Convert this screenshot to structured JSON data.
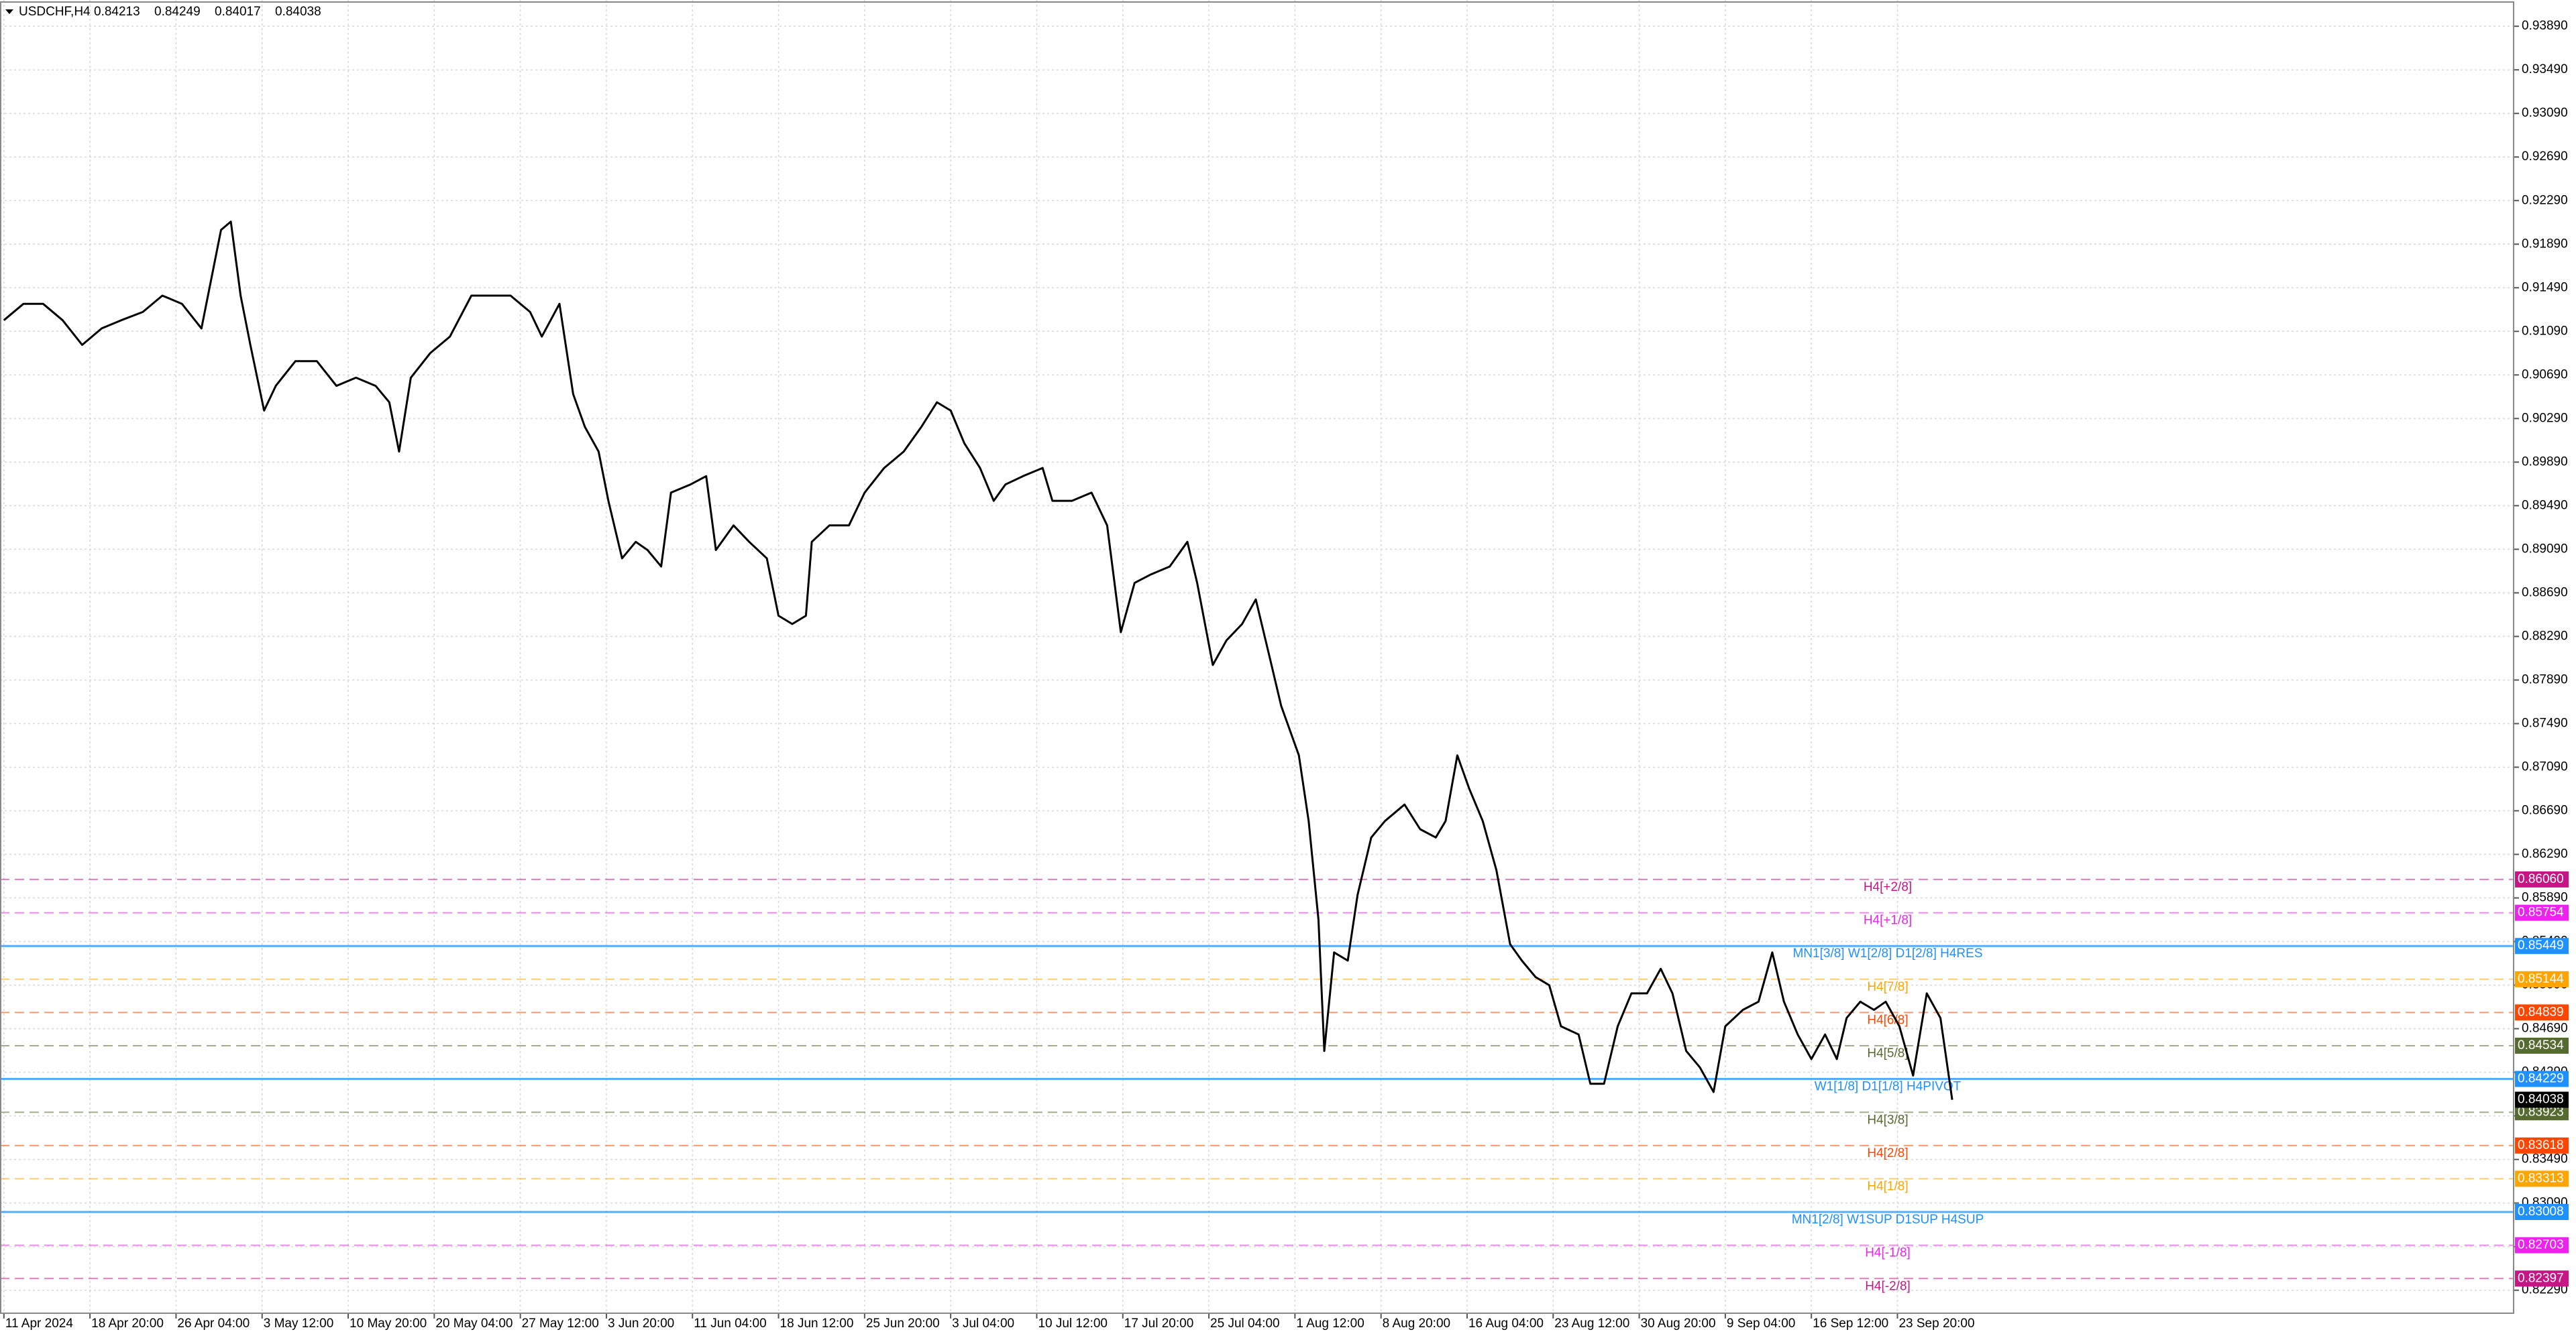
{
  "chart_data": {
    "type": "line",
    "title": "USDCHF,H4",
    "ohlc": [
      0.84213,
      0.84249,
      0.84017,
      0.84038
    ],
    "xlim": [
      -2,
      1283
    ],
    "ylim": [
      0.82079,
      0.94131
    ],
    "grid": true,
    "xticks": [
      {
        "value": 0,
        "label": "11 Apr 2024"
      },
      {
        "value": 44,
        "label": "18 Apr 20:00"
      },
      {
        "value": 88,
        "label": "26 Apr 04:00"
      },
      {
        "value": 132,
        "label": "3 May 12:00"
      },
      {
        "value": 176,
        "label": "10 May 20:00"
      },
      {
        "value": 220,
        "label": "20 May 04:00"
      },
      {
        "value": 264,
        "label": "27 May 12:00"
      },
      {
        "value": 308,
        "label": "3 Jun 20:00"
      },
      {
        "value": 352,
        "label": "11 Jun 04:00"
      },
      {
        "value": 396,
        "label": "18 Jun 12:00"
      },
      {
        "value": 440,
        "label": "25 Jun 20:00"
      },
      {
        "value": 484,
        "label": "3 Jul 04:00"
      },
      {
        "value": 528,
        "label": "10 Jul 12:00"
      },
      {
        "value": 572,
        "label": "17 Jul 20:00"
      },
      {
        "value": 616,
        "label": "25 Jul 04:00"
      },
      {
        "value": 660,
        "label": "1 Aug 12:00"
      },
      {
        "value": 704,
        "label": "8 Aug 20:00"
      },
      {
        "value": 748,
        "label": "16 Aug 04:00"
      },
      {
        "value": 792,
        "label": "23 Aug 12:00"
      },
      {
        "value": 836,
        "label": "30 Aug 20:00"
      },
      {
        "value": 880,
        "label": "9 Sep 04:00"
      },
      {
        "value": 924,
        "label": "16 Sep 12:00"
      },
      {
        "value": 968,
        "label": "23 Sep 20:00"
      }
    ],
    "yticks": [
      {
        "value": 0.9389,
        "label": "0.93890"
      },
      {
        "value": 0.9349,
        "label": "0.93490"
      },
      {
        "value": 0.9309,
        "label": "0.93090"
      },
      {
        "value": 0.9269,
        "label": "0.92690"
      },
      {
        "value": 0.9229,
        "label": "0.92290"
      },
      {
        "value": 0.9189,
        "label": "0.91890"
      },
      {
        "value": 0.9149,
        "label": "0.91490"
      },
      {
        "value": 0.9109,
        "label": "0.91090"
      },
      {
        "value": 0.9069,
        "label": "0.90690"
      },
      {
        "value": 0.9029,
        "label": "0.90290"
      },
      {
        "value": 0.8989,
        "label": "0.89890"
      },
      {
        "value": 0.8949,
        "label": "0.89490"
      },
      {
        "value": 0.8909,
        "label": "0.89090"
      },
      {
        "value": 0.8869,
        "label": "0.88690"
      },
      {
        "value": 0.8829,
        "label": "0.88290"
      },
      {
        "value": 0.8789,
        "label": "0.87890"
      },
      {
        "value": 0.8749,
        "label": "0.87490"
      },
      {
        "value": 0.8709,
        "label": "0.87090"
      },
      {
        "value": 0.8669,
        "label": "0.86690"
      },
      {
        "value": 0.8629,
        "label": "0.86290"
      },
      {
        "value": 0.8589,
        "label": "0.85890"
      },
      {
        "value": 0.8549,
        "label": "0.85490"
      },
      {
        "value": 0.8509,
        "label": "0.85090"
      },
      {
        "value": 0.8469,
        "label": "0.84690"
      },
      {
        "value": 0.8429,
        "label": "0.84290"
      },
      {
        "value": 0.8389,
        "label": "0.83890"
      },
      {
        "value": 0.8349,
        "label": "0.83490"
      },
      {
        "value": 0.8309,
        "label": "0.83090"
      },
      {
        "value": 0.8269,
        "label": "0.82690"
      },
      {
        "value": 0.8229,
        "label": "0.82290"
      }
    ],
    "series": [
      {
        "color": "#000000",
        "x": [
          0,
          10,
          20,
          30,
          40,
          50,
          60,
          71,
          81,
          91,
          101,
          111,
          116,
          121,
          126,
          133,
          139,
          149,
          160,
          170,
          180,
          190,
          197,
          202,
          208,
          218,
          228,
          239,
          249,
          259,
          269,
          275,
          284,
          291,
          297,
          304,
          309,
          316,
          323,
          329,
          336,
          341,
          351,
          359,
          364,
          373,
          381,
          390,
          396,
          403,
          410,
          413,
          422,
          432,
          440,
          450,
          460,
          469,
          477,
          484,
          491,
          499,
          506,
          512,
          521,
          531,
          536,
          546,
          556,
          564,
          571,
          578,
          586,
          596,
          605,
          610,
          618,
          625,
          633,
          640,
          647,
          653,
          662,
          667,
          672,
          675,
          680,
          687,
          692,
          699,
          706,
          716,
          724,
          732,
          737,
          743,
          749,
          756,
          763,
          770,
          776,
          783,
          790,
          796,
          805,
          811,
          818,
          825,
          832,
          840,
          847,
          853,
          860,
          867,
          874,
          880,
          889,
          897,
          904,
          910,
          917,
          924,
          931,
          937,
          942,
          949,
          956,
          962,
          969,
          976,
          983,
          990,
          996
        ],
        "values": [
          0.91192,
          0.91343,
          0.91343,
          0.91192,
          0.90966,
          0.91117,
          0.91192,
          0.91268,
          0.91418,
          0.91343,
          0.91117,
          0.92021,
          0.92097,
          0.91418,
          0.90966,
          0.90363,
          0.9059,
          0.90816,
          0.90816,
          0.9059,
          0.90665,
          0.9059,
          0.90439,
          0.89987,
          0.90665,
          0.90891,
          0.91042,
          0.91418,
          0.91418,
          0.91418,
          0.91268,
          0.91042,
          0.91343,
          0.90514,
          0.90213,
          0.89987,
          0.89535,
          0.89007,
          0.89158,
          0.89083,
          0.88932,
          0.8961,
          0.89685,
          0.89761,
          0.89083,
          0.89309,
          0.89158,
          0.89007,
          0.8848,
          0.88404,
          0.8848,
          0.89158,
          0.89309,
          0.89309,
          0.8961,
          0.89836,
          0.89987,
          0.90213,
          0.90439,
          0.90363,
          0.90062,
          0.89836,
          0.89535,
          0.89685,
          0.89761,
          0.89836,
          0.89535,
          0.89535,
          0.8961,
          0.89309,
          0.88329,
          0.88781,
          0.88856,
          0.88932,
          0.89158,
          0.88781,
          0.88028,
          0.88254,
          0.88404,
          0.8863,
          0.88103,
          0.87651,
          0.87199,
          0.86596,
          0.85692,
          0.84486,
          0.8539,
          0.85315,
          0.85918,
          0.86445,
          0.86596,
          0.86747,
          0.86521,
          0.86445,
          0.86596,
          0.87199,
          0.86897,
          0.86596,
          0.86144,
          0.85466,
          0.85315,
          0.85164,
          0.85089,
          0.84712,
          0.84637,
          0.84185,
          0.84185,
          0.84712,
          0.85014,
          0.85014,
          0.8524,
          0.85014,
          0.84486,
          0.84335,
          0.84109,
          0.84712,
          0.84863,
          0.84938,
          0.8539,
          0.84938,
          0.84637,
          0.84411,
          0.84637,
          0.84411,
          0.84788,
          0.84938,
          0.84863,
          0.84938,
          0.84712,
          0.8426,
          0.85014,
          0.84788,
          0.84038
        ]
      }
    ],
    "levels": {
      "names": [
        "H4[+2/8]",
        "H4[+1/8]",
        "MN1[3/8] W1[2/8] D1[2/8] H4RES",
        "H4[7/8]",
        "H4[6/8]",
        "H4[5/8]",
        "W1[1/8] D1[1/8] H4PIVOT",
        "H4[3/8]",
        "H4[2/8]",
        "H4[1/8]",
        "MN1[2/8] W1SUP D1SUP H4SUP",
        "H4[-1/8]",
        "H4[-2/8]"
      ],
      "values": [
        0.8606,
        0.85754,
        0.85449,
        0.85144,
        0.84839,
        0.84534,
        0.84229,
        0.83923,
        0.83618,
        0.83313,
        0.83008,
        0.82703,
        0.82397
      ],
      "value_labels": [
        "0.86060",
        "0.85754",
        "0.85449",
        "0.85144",
        "0.84839",
        "0.84534",
        "0.84229",
        "0.83923",
        "0.83618",
        "0.83313",
        "0.83008",
        "0.82703",
        "0.82397"
      ],
      "colors": [
        "#c71585",
        "#ee22ee",
        "#1e90ff",
        "#ffa500",
        "#ff4500",
        "#556b2f",
        "#1e90ff",
        "#556b2f",
        "#ff4500",
        "#ffa500",
        "#1e90ff",
        "#ee22ee",
        "#c71585"
      ],
      "dashed": [
        true,
        true,
        false,
        true,
        true,
        true,
        false,
        true,
        true,
        true,
        false,
        true,
        true
      ]
    },
    "last_price": {
      "value": 0.84038,
      "label": "0.84038",
      "color": "#000000"
    }
  }
}
